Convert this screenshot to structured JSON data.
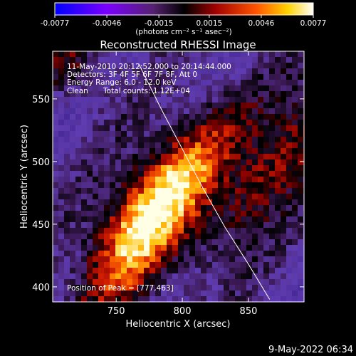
{
  "chart_data": {
    "type": "heatmap",
    "title": "Reconstructed RHESSI Image",
    "xlabel": "Heliocentric X (arcsec)",
    "ylabel": "Heliocentric Y (arcsec)",
    "xlim": [
      702,
      892
    ],
    "ylim": [
      388,
      588
    ],
    "x_ticks": [
      750,
      800,
      850
    ],
    "y_ticks": [
      400,
      450,
      500,
      550
    ],
    "colorbar": {
      "ticks": [
        "-0.0077",
        "-0.0046",
        "-0.0015",
        "0.0015",
        "0.0046",
        "0.0077"
      ],
      "units_label": "(photons cm⁻² s⁻¹ asec⁻²)",
      "min": -0.0077,
      "max": 0.0077
    },
    "annotations": {
      "time": "11-May-2010 20:12:52.000 to 20:14:44.000",
      "detectors": "Detectors: 3F 4F 5F 6F 7F 8F, Att 0",
      "energy": "Energy Range: 6.0 - 12.0 keV",
      "clean": "Clean",
      "total_counts": "Total counts: 1.12E+04",
      "peak": "Position of Peak = [777,463]"
    },
    "peak": {
      "x": 777,
      "y": 463
    },
    "limb_curve": [
      {
        "x": 767,
        "y": 578
      },
      {
        "x": 785,
        "y": 540
      },
      {
        "x": 800,
        "y": 510
      },
      {
        "x": 815,
        "y": 480
      },
      {
        "x": 832,
        "y": 448
      },
      {
        "x": 850,
        "y": 418
      },
      {
        "x": 866,
        "y": 390
      }
    ],
    "grid": false,
    "legend": "none"
  },
  "footer": {
    "date": "9-May-2022 06:34"
  }
}
